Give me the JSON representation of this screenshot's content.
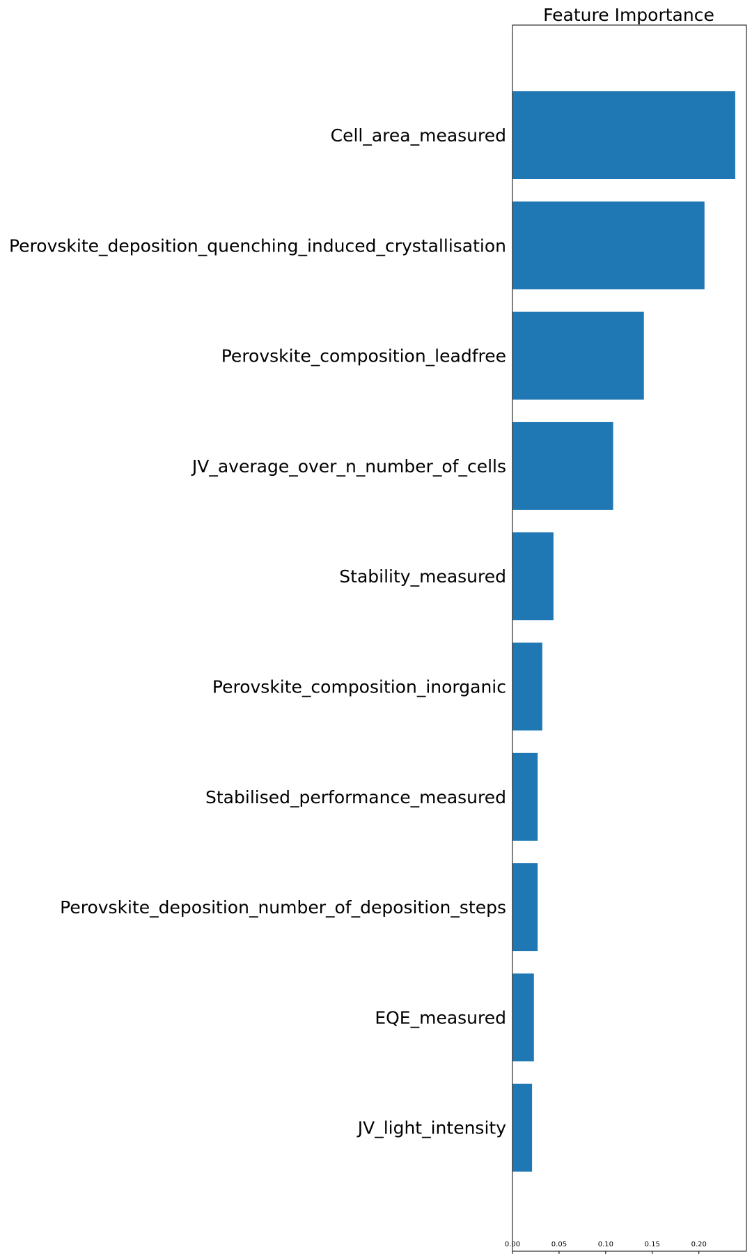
{
  "chart_data": {
    "type": "bar",
    "orientation": "horizontal",
    "title": "Feature Importance",
    "xlabel": "",
    "ylabel": "",
    "categories": [
      "Cell_area_measured",
      "Perovskite_deposition_quenching_induced_crystallisation",
      "Perovskite_composition_leadfree",
      "JV_average_over_n_number_of_cells",
      "Stability_measured",
      "Perovskite_composition_inorganic",
      "Stabilised_performance_measured",
      "Perovskite_deposition_number_of_deposition_steps",
      "EQE_measured",
      "JV_light_intensity"
    ],
    "values": [
      0.239,
      0.206,
      0.141,
      0.108,
      0.044,
      0.032,
      0.027,
      0.027,
      0.023,
      0.021
    ],
    "xlim": [
      0,
      0.251
    ],
    "x_ticks": [
      "0.00",
      "0.05",
      "0.10",
      "0.15",
      "0.20"
    ],
    "x_tick_values": [
      0,
      0.05,
      0.1,
      0.15,
      0.2
    ],
    "bar_color": "#1f77b4",
    "grid": false
  }
}
